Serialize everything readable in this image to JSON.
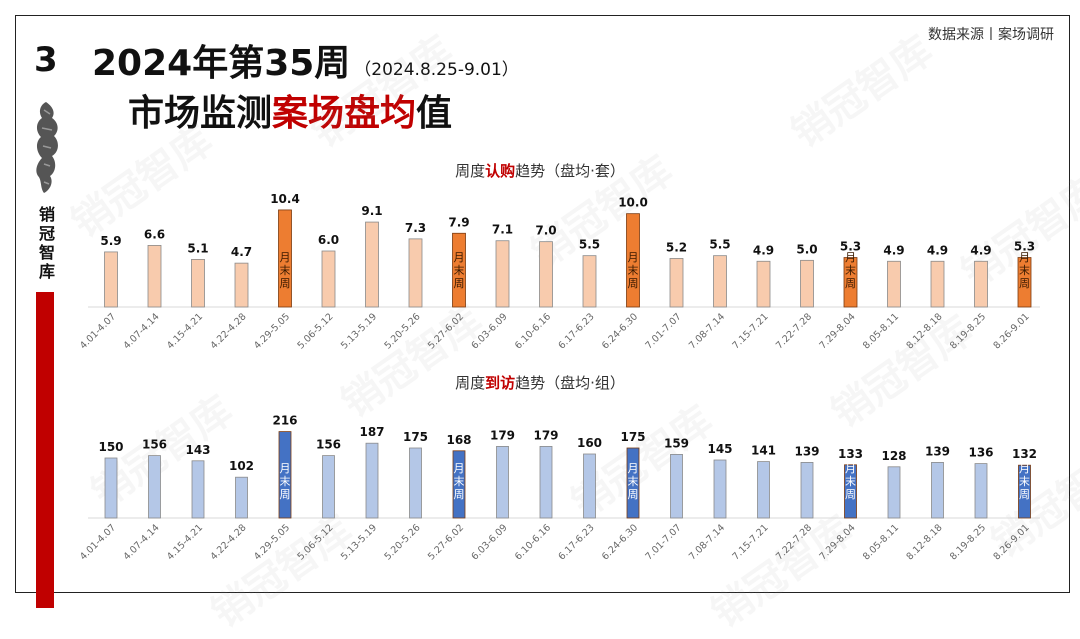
{
  "section_number": "3",
  "brand_vertical": "销冠智库",
  "title_line1": "2024年第35周",
  "title_date": "（2024.8.25-9.01）",
  "title_line2_a": "市场监测",
  "title_line2_b": "案场盘均",
  "title_line2_c": "值",
  "source": "数据来源丨案场调研",
  "watermark": "销冠智库",
  "colors": {
    "accent_red": "#c00000",
    "subscribe_normal": "#f8cbad",
    "subscribe_month_end": "#ed7d31",
    "visit_normal": "#b4c7e7",
    "visit_month_end": "#4472c4"
  },
  "chart_data": [
    {
      "type": "bar",
      "title_prefix": "周度",
      "title_highlight": "认购",
      "title_suffix": "趋势（盘均·套）",
      "month_end_label": "月末周",
      "categories": [
        "4.01-4.07",
        "4.07-4.14",
        "4.15-4.21",
        "4.22-4.28",
        "4.29-5.05",
        "5.06-5.12",
        "5.13-5.19",
        "5.20-5.26",
        "5.27-6.02",
        "6.03-6.09",
        "6.10-6.16",
        "6.17-6.23",
        "6.24-6.30",
        "7.01-7.07",
        "7.08-7.14",
        "7.15-7.21",
        "7.22-7.28",
        "7.29-8.04",
        "8.05-8.11",
        "8.12-8.18",
        "8.19-8.25",
        "8.26-9.01"
      ],
      "values": [
        5.9,
        6.6,
        5.1,
        4.7,
        10.4,
        6.0,
        9.1,
        7.3,
        7.9,
        7.1,
        7.0,
        5.5,
        10.0,
        5.2,
        5.5,
        4.9,
        5.0,
        5.3,
        4.9,
        4.9,
        4.9,
        5.3
      ],
      "value_labels": [
        "5.9",
        "6.6",
        "5.1",
        "4.7",
        "10.4",
        "6.0",
        "9.1",
        "7.3",
        "7.9",
        "7.1",
        "7.0",
        "5.5",
        "10.0",
        "5.2",
        "5.5",
        "4.9",
        "5.0",
        "5.3",
        "4.9",
        "4.9",
        "4.9",
        "5.3"
      ],
      "month_end": [
        4,
        8,
        12,
        17,
        21
      ],
      "ylim": [
        0,
        12
      ]
    },
    {
      "type": "bar",
      "title_prefix": "周度",
      "title_highlight": "到访",
      "title_suffix": "趋势（盘均·组）",
      "month_end_label": "月末周",
      "categories": [
        "4.01-4.07",
        "4.07-4.14",
        "4.15-4.21",
        "4.22-4.28",
        "4.29-5.05",
        "5.06-5.12",
        "5.13-5.19",
        "5.20-5.26",
        "5.27-6.02",
        "6.03-6.09",
        "6.10-6.16",
        "6.17-6.23",
        "6.24-6.30",
        "7.01-7.07",
        "7.08-7.14",
        "7.15-7.21",
        "7.22-7.28",
        "7.29-8.04",
        "8.05-8.11",
        "8.12-8.18",
        "8.19-8.25",
        "8.26-9.01"
      ],
      "values": [
        150,
        156,
        143,
        102,
        216,
        156,
        187,
        175,
        168,
        179,
        179,
        160,
        175,
        159,
        145,
        141,
        139,
        133,
        128,
        139,
        136,
        132
      ],
      "value_labels": [
        "150",
        "156",
        "143",
        "102",
        "216",
        "156",
        "187",
        "175",
        "168",
        "179",
        "179",
        "160",
        "175",
        "159",
        "145",
        "141",
        "139",
        "133",
        "128",
        "139",
        "136",
        "132"
      ],
      "month_end": [
        4,
        8,
        12,
        17,
        21
      ],
      "ylim": [
        0,
        250
      ]
    }
  ]
}
